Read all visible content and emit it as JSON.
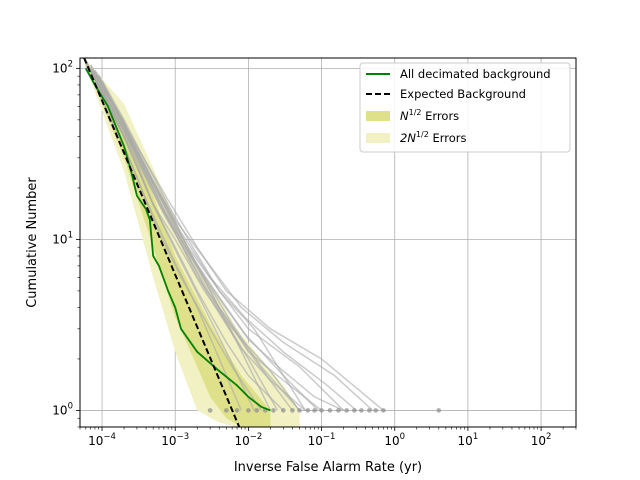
{
  "chart_data": {
    "type": "line",
    "title": "",
    "xlabel": "Inverse False Alarm Rate (yr)",
    "ylabel": "Cumulative Number",
    "x_scale": "log",
    "y_scale": "log",
    "xlim": [
      5e-05,
      300
    ],
    "ylim": [
      0.8,
      115
    ],
    "x_ticks": [
      {
        "value": 0.0001,
        "base": "10",
        "exp": "−4"
      },
      {
        "value": 0.001,
        "base": "10",
        "exp": "−3"
      },
      {
        "value": 0.01,
        "base": "10",
        "exp": "−2"
      },
      {
        "value": 0.1,
        "base": "10",
        "exp": "−1"
      },
      {
        "value": 1,
        "base": "10",
        "exp": "0"
      },
      {
        "value": 10,
        "base": "10",
        "exp": "1"
      },
      {
        "value": 100,
        "base": "10",
        "exp": "2"
      }
    ],
    "y_ticks": [
      {
        "value": 1,
        "base": "10",
        "exp": "0"
      },
      {
        "value": 10,
        "base": "10",
        "exp": "1"
      },
      {
        "value": 100,
        "base": "10",
        "exp": "2"
      }
    ],
    "grid": true,
    "legend_position": "top-right",
    "legend": [
      {
        "key": "decimated",
        "label": "All decimated background",
        "sup": "",
        "suffix": "",
        "color": "#008000",
        "style": "solid"
      },
      {
        "key": "expected",
        "label": "Expected Background",
        "sup": "",
        "suffix": "",
        "color": "#000000",
        "style": "dashed"
      },
      {
        "key": "err1",
        "label": "N",
        "sup": "1/2",
        "suffix": " Errors",
        "color": "#dfe08a",
        "style": "patch"
      },
      {
        "key": "err2",
        "label": "2N",
        "sup": "1/2",
        "suffix": " Errors",
        "color": "#f1f1c4",
        "style": "patch"
      }
    ],
    "series": [
      {
        "name": "All decimated background",
        "color": "#008000",
        "x": [
          6e-05,
          8e-05,
          0.00012,
          0.0002,
          0.00025,
          0.0003,
          0.0004,
          0.00045,
          0.0005,
          0.0006,
          0.0008,
          0.001,
          0.0012,
          0.002,
          0.004,
          0.007,
          0.01,
          0.015,
          0.02
        ],
        "y": [
          100,
          80,
          60,
          35,
          25,
          18,
          15,
          13,
          8,
          7,
          5,
          4,
          3,
          2.2,
          1.7,
          1.4,
          1.2,
          1.05,
          1.0
        ]
      },
      {
        "name": "Expected Background",
        "color": "#000000",
        "x": [
          5.7e-05,
          0.0075
        ],
        "y": [
          115,
          0.8
        ]
      }
    ],
    "error_bands": [
      {
        "name": "2N^1/2 Errors",
        "color": "#f1f1c4",
        "x": [
          5.7e-05,
          0.0002,
          0.0005,
          0.001,
          0.002,
          0.004,
          0.007,
          0.015,
          0.03,
          0.05
        ],
        "lower": [
          108,
          25,
          6,
          2.2,
          1.0,
          0.85,
          0.8,
          0.8,
          0.8,
          0.8
        ],
        "upper": [
          115,
          62,
          26,
          13,
          7,
          4.5,
          3,
          2,
          1.4,
          1.0
        ]
      },
      {
        "name": "N^1/2 Errors",
        "color": "#dfe08a",
        "x": [
          5.7e-05,
          0.0002,
          0.0005,
          0.001,
          0.002,
          0.003,
          0.005,
          0.008,
          0.012,
          0.02
        ],
        "lower": [
          112,
          30,
          9,
          3.5,
          1.8,
          1.2,
          0.9,
          0.8,
          0.8,
          0.8
        ],
        "upper": [
          115,
          50,
          18,
          8,
          4.5,
          3.2,
          2.2,
          1.6,
          1.3,
          1.0
        ]
      }
    ],
    "background_trials_color": "#a9a9a9",
    "background_trials": [
      {
        "x": [
          6e-05,
          0.0001,
          0.0002,
          0.0005,
          0.001,
          0.002,
          0.005,
          0.01,
          0.03
        ],
        "y": [
          110,
          70,
          40,
          16,
          9,
          5,
          2.5,
          1.6,
          1.0
        ]
      },
      {
        "x": [
          7e-05,
          0.00015,
          0.0003,
          0.0007,
          0.0015,
          0.003,
          0.008,
          0.02,
          0.06
        ],
        "y": [
          105,
          55,
          30,
          14,
          8,
          4.5,
          2.3,
          1.5,
          1.0
        ]
      },
      {
        "x": [
          6e-05,
          0.00012,
          0.00025,
          0.0006,
          0.0012,
          0.003,
          0.006,
          0.015
        ],
        "y": [
          100,
          60,
          28,
          11,
          6,
          3,
          1.8,
          1.0
        ]
      },
      {
        "x": [
          8e-05,
          0.0002,
          0.0004,
          0.0008,
          0.002,
          0.004,
          0.01,
          0.03,
          0.1
        ],
        "y": [
          95,
          45,
          25,
          15,
          7,
          4,
          2.2,
          1.5,
          1.0
        ]
      },
      {
        "x": [
          6e-05,
          0.0001,
          0.0003,
          0.0006,
          0.0015,
          0.004,
          0.01,
          0.05,
          0.2
        ],
        "y": [
          108,
          75,
          32,
          18,
          9,
          5,
          3,
          1.8,
          1.0
        ]
      },
      {
        "x": [
          7e-05,
          0.00015,
          0.0003,
          0.0008,
          0.002,
          0.005,
          0.02,
          0.1,
          0.7
        ],
        "y": [
          100,
          60,
          35,
          17,
          9,
          5,
          3,
          2,
          1.0
        ]
      },
      {
        "x": [
          6e-05,
          0.0001,
          0.0002,
          0.0004,
          0.0009,
          0.002,
          0.004,
          0.008
        ],
        "y": [
          102,
          65,
          35,
          17,
          8,
          4,
          2,
          1.0
        ]
      },
      {
        "x": [
          9e-05,
          0.0002,
          0.0005,
          0.001,
          0.003,
          0.008,
          0.03,
          0.15,
          0.5
        ],
        "y": [
          90,
          48,
          22,
          13,
          7,
          4,
          2.5,
          1.6,
          1.0
        ]
      },
      {
        "x": [
          6e-05,
          0.00013,
          0.0003,
          0.0005,
          0.001,
          0.0025,
          0.006,
          0.02,
          0.05
        ],
        "y": [
          112,
          58,
          28,
          16,
          10,
          5,
          3,
          1.7,
          1.0
        ]
      },
      {
        "x": [
          8e-05,
          0.00018,
          0.0004,
          0.0009,
          0.002,
          0.005,
          0.012,
          0.04
        ],
        "y": [
          98,
          50,
          24,
          12,
          6,
          3.5,
          2,
          1.0
        ]
      },
      {
        "x": [
          7e-05,
          0.00014,
          0.0003,
          0.0006,
          0.0012,
          0.003,
          0.009,
          0.03,
          0.12,
          0.3
        ],
        "y": [
          104,
          62,
          33,
          19,
          11,
          6,
          3.5,
          2.2,
          1.4,
          1.0
        ]
      },
      {
        "x": [
          6e-05,
          0.00011,
          0.00022,
          0.0005,
          0.0011,
          0.0025,
          0.005,
          0.012
        ],
        "y": [
          106,
          68,
          36,
          16,
          8,
          4,
          2.2,
          1.0
        ]
      },
      {
        "x": [
          0.0001,
          0.0002,
          0.0004,
          0.0008,
          0.0015,
          0.004,
          0.012,
          0.06
        ],
        "y": [
          85,
          50,
          28,
          16,
          10,
          5,
          3,
          1.0
        ]
      },
      {
        "x": [
          7e-05,
          0.00016,
          0.00035,
          0.0008,
          0.0018,
          0.004,
          0.01,
          0.025
        ],
        "y": [
          100,
          52,
          27,
          13,
          7,
          3.8,
          2,
          1.0
        ]
      },
      {
        "x": [
          6e-05,
          0.0001,
          0.00025,
          0.0006,
          0.0014,
          0.0035,
          0.009,
          0.03,
          0.09
        ],
        "y": [
          110,
          72,
          34,
          16,
          9,
          5,
          2.8,
          1.6,
          1.0
        ]
      },
      {
        "x": [
          8e-05,
          0.00017,
          0.0004,
          0.001,
          0.0025,
          0.006,
          0.015,
          0.05
        ],
        "y": [
          96,
          54,
          26,
          12,
          6,
          3.2,
          1.8,
          1.0
        ]
      },
      {
        "x": [
          6e-05,
          0.00012,
          0.0003,
          0.0007,
          0.0016,
          0.004,
          0.01,
          0.03,
          0.08,
          0.2
        ],
        "y": [
          108,
          64,
          31,
          15,
          8,
          4.5,
          2.6,
          1.7,
          1.2,
          1.0
        ]
      },
      {
        "x": [
          9e-05,
          0.0002,
          0.0005,
          0.0012,
          0.003,
          0.007,
          0.02
        ],
        "y": [
          92,
          47,
          21,
          10,
          5,
          2.5,
          1.0
        ]
      }
    ],
    "background_tail_points": [
      0.003,
      0.005,
      0.007,
      0.01,
      0.013,
      0.017,
      0.022,
      0.03,
      0.04,
      0.05,
      0.065,
      0.08,
      0.1,
      0.13,
      0.17,
      0.22,
      0.28,
      0.35,
      0.45,
      0.55,
      0.7,
      4.0
    ]
  }
}
